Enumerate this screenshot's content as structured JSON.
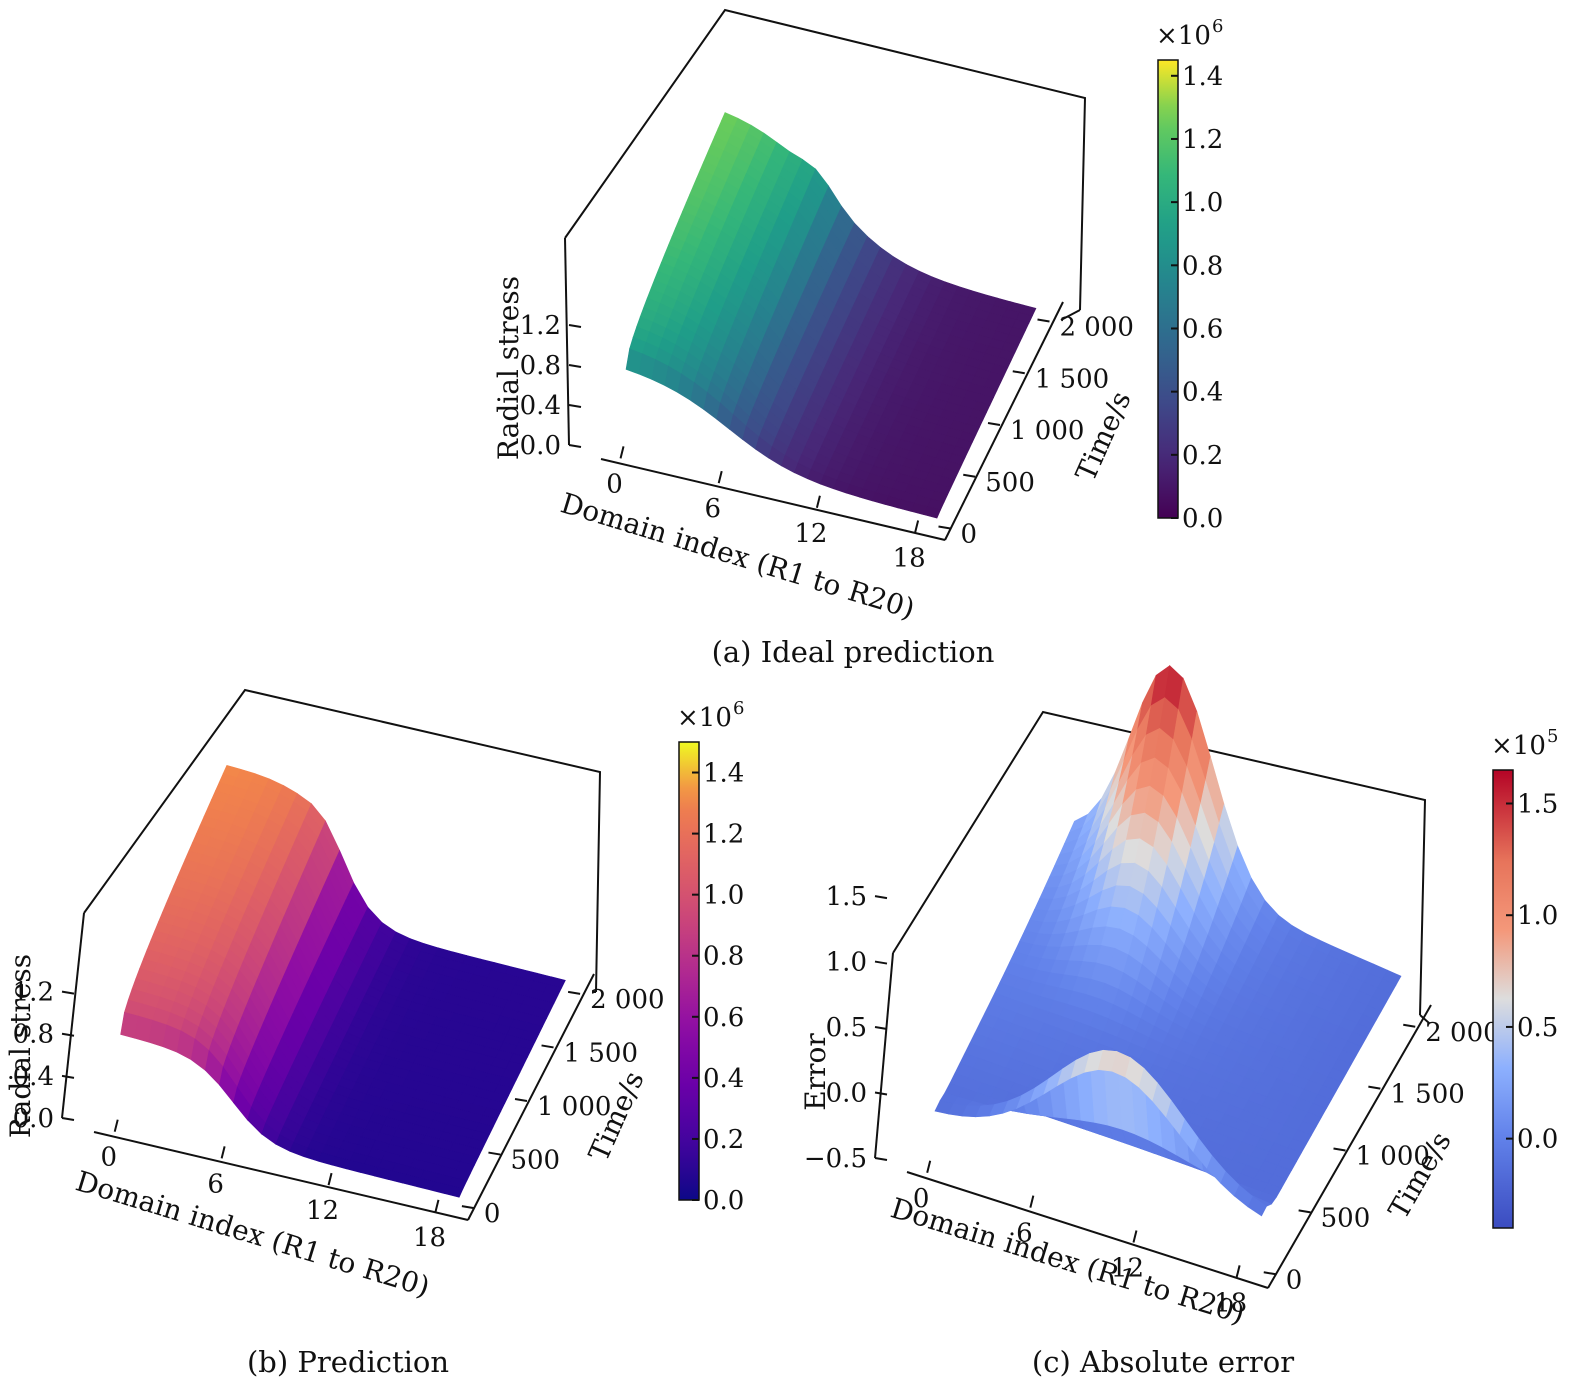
{
  "colors": {
    "axis": "#111111",
    "background": "#ffffff"
  },
  "chart_data": [
    {
      "id": "a",
      "type": "surface3d",
      "title": "(a) Ideal prediction",
      "colormap": "viridis",
      "xlabel": "Domain index (R1 to R20)",
      "ylabel": "Time/s",
      "zlabel": "Radial stress",
      "x_ticks": [
        "0",
        "6",
        "12",
        "18"
      ],
      "y_ticks": [
        "0",
        "500",
        "1 000",
        "1 500",
        "2 000"
      ],
      "z_ticks": [
        "0.0",
        "0.4",
        "0.8",
        "1.2"
      ],
      "colorbar_ticks": [
        "0.0",
        "0.2",
        "0.4",
        "0.6",
        "0.8",
        "1.0",
        "1.2",
        "1.4"
      ],
      "colorbar_exponent": "×10",
      "colorbar_exponent_power": "6",
      "xlim": [
        0,
        19
      ],
      "ylim": [
        0,
        2000
      ],
      "zlim": [
        0,
        1.5
      ],
      "clim": [
        0,
        1.45
      ],
      "surface_max": 1.45,
      "drop_position": 4,
      "drop_sharpness": 0.9
    },
    {
      "id": "b",
      "type": "surface3d",
      "title": "(b) Prediction",
      "colormap": "plasma",
      "xlabel": "Domain index (R1 to R20)",
      "ylabel": "Time/s",
      "zlabel": "Radial stress",
      "x_ticks": [
        "0",
        "6",
        "12",
        "18"
      ],
      "y_ticks": [
        "0",
        "500",
        "1 000",
        "1 500",
        "2 000"
      ],
      "z_ticks": [
        "0.0",
        "0.4",
        "0.8",
        "1.2"
      ],
      "colorbar_ticks": [
        "0.0",
        "0.2",
        "0.4",
        "0.6",
        "0.8",
        "1.0",
        "1.2",
        "1.4"
      ],
      "colorbar_exponent": "×10",
      "colorbar_exponent_power": "6",
      "xlim": [
        0,
        19
      ],
      "ylim": [
        0,
        2000
      ],
      "zlim": [
        0,
        1.5
      ],
      "clim": [
        0,
        1.5
      ],
      "surface_max": 1.45,
      "drop_position": 4,
      "drop_sharpness": 1.8
    },
    {
      "id": "c",
      "type": "surface3d",
      "title": "(c) Absolute error",
      "colormap": "coolwarm",
      "xlabel": "Domain index (R1 to R20)",
      "ylabel": "Time/s",
      "zlabel": "Error",
      "x_ticks": [
        "0",
        "6",
        "12",
        "18"
      ],
      "y_ticks": [
        "0",
        "500",
        "1 000",
        "1 500",
        "2 000"
      ],
      "z_ticks": [
        "−0.5",
        "0.0",
        "0.5",
        "1.0",
        "1.5"
      ],
      "colorbar_ticks": [
        "0.0",
        "0.5",
        "1.0",
        "1.5"
      ],
      "colorbar_exponent": "×10",
      "colorbar_exponent_power": "5",
      "xlim": [
        0,
        19
      ],
      "ylim": [
        0,
        2000
      ],
      "zlim": [
        -0.5,
        1.6
      ],
      "clim": [
        -0.4,
        1.65
      ],
      "surface_max": 1.6,
      "ridge_height": 1.0
    }
  ]
}
